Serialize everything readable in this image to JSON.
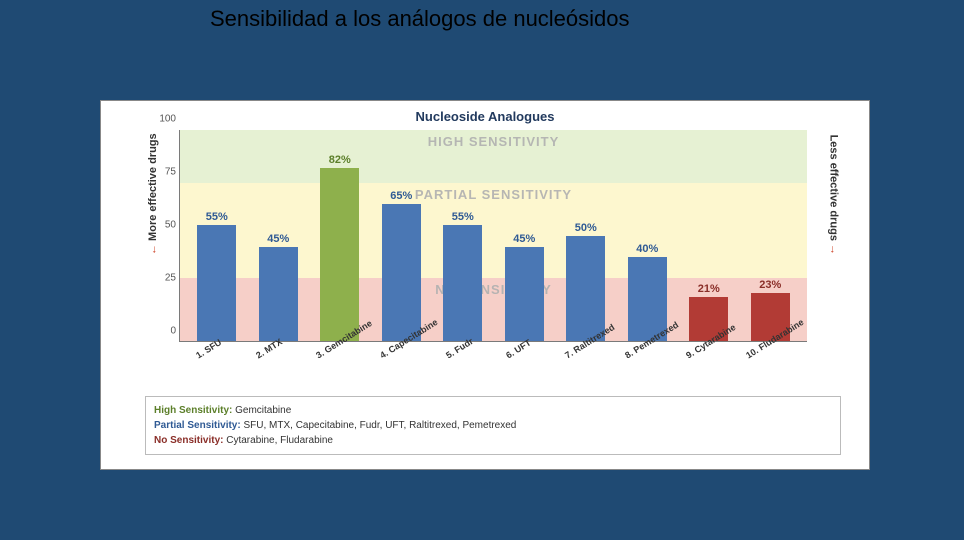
{
  "slide": {
    "title": "Sensibilidad a los análogos de nucleósidos",
    "bg_color": "#1f4a73"
  },
  "chart": {
    "type": "bar",
    "title": "Nucleoside Analogues",
    "title_color": "#223a5e",
    "title_fontsize": 13,
    "background_color": "#ffffff",
    "border_color": "#888888",
    "ylim": [
      0,
      100
    ],
    "yticks": [
      0,
      25,
      50,
      75,
      100
    ],
    "ytick_fontsize": 10,
    "y_left_label": "More effective drugs",
    "y_left_arrow": "←",
    "y_right_label": "Less effective drugs",
    "y_right_arrow": "→",
    "arrow_color": "#cc3b1f",
    "bands": [
      {
        "from": 75,
        "to": 100,
        "color": "#e6f1d3",
        "label": "HIGH SENSITIVITY"
      },
      {
        "from": 30,
        "to": 75,
        "color": "#fdf7cf",
        "label": "PARTIAL SENSITIVITY"
      },
      {
        "from": 0,
        "to": 30,
        "color": "#f6cfc8",
        "label": "NO SENSITIVITY"
      }
    ],
    "band_label_color": "#b0b0b0",
    "colors": {
      "partial": "#4a77b4",
      "high": "#8eb04c",
      "none": "#b23b35"
    },
    "value_label_colors": {
      "partial": "#2f5a94",
      "high": "#5c7f2a",
      "none": "#8a2e28"
    },
    "bar_width": 0.64,
    "categories": [
      "1. SFU",
      "2. MTX",
      "3. Gemcitabine",
      "4. Capecitabine",
      "5. Fudr",
      "6. UFT",
      "7. Raltitrexed",
      "8. Pemetrexed",
      "9. Cytarabine",
      "10. Fludarabine"
    ],
    "values": [
      55,
      45,
      82,
      65,
      55,
      45,
      50,
      40,
      21,
      23
    ],
    "series_group": [
      "partial",
      "partial",
      "high",
      "partial",
      "partial",
      "partial",
      "partial",
      "partial",
      "none",
      "none"
    ],
    "xlabel_fontsize": 9,
    "value_fontsize": 11
  },
  "legend": {
    "border_color": "#bbbbbb",
    "rows": [
      {
        "label": "High Sensitivity:",
        "label_color": "#5c7f2a",
        "text": "Gemcitabine"
      },
      {
        "label": "Partial Sensitivity:",
        "label_color": "#2f5a94",
        "text": "SFU, MTX, Capecitabine, Fudr, UFT, Raltitrexed, Pemetrexed"
      },
      {
        "label": "No Sensitivity:",
        "label_color": "#8a2e28",
        "text": "Cytarabine, Fludarabine"
      }
    ]
  }
}
